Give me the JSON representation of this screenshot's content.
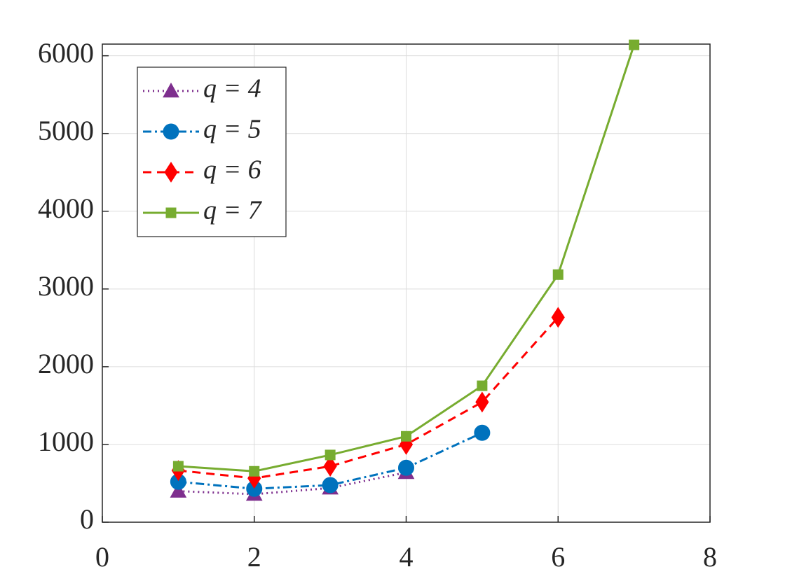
{
  "chart_data": {
    "type": "line",
    "x": [
      1,
      2,
      3,
      4,
      5,
      6,
      7
    ],
    "series": [
      {
        "name": "q = 4",
        "color": "#7e2f8e",
        "dash": "dotted",
        "marker": "triangle",
        "values": [
          400,
          360,
          440,
          640,
          null,
          null,
          null
        ]
      },
      {
        "name": "q = 5",
        "color": "#0072bd",
        "dash": "dashdot",
        "marker": "circle",
        "values": [
          520,
          430,
          477,
          700,
          1150,
          null,
          null
        ]
      },
      {
        "name": "q = 6",
        "color": "#ff0000",
        "dash": "dashed",
        "marker": "diamond",
        "values": [
          665,
          565,
          720,
          1000,
          1545,
          2635,
          null
        ]
      },
      {
        "name": "q = 7",
        "color": "#77ac30",
        "dash": "solid",
        "marker": "square",
        "values": [
          720,
          655,
          865,
          1105,
          1755,
          3185,
          6140
        ]
      }
    ],
    "xlim": [
      0,
      8
    ],
    "xticks": [
      0,
      2,
      4,
      6,
      8
    ],
    "ylim": [
      0,
      6150
    ],
    "yticks": [
      0,
      1000,
      2000,
      3000,
      4000,
      5000,
      6000
    ],
    "grid": true,
    "legend": "upper-left"
  }
}
